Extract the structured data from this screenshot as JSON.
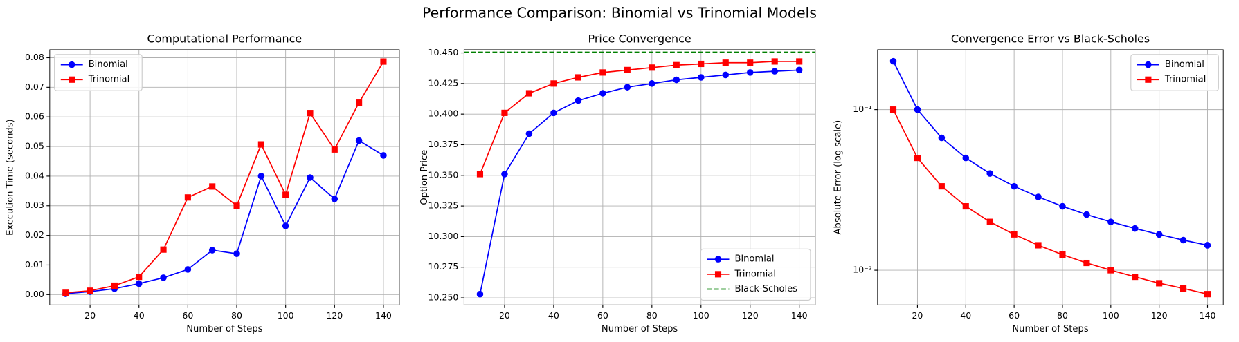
{
  "title": "Performance Comparison: Binomial vs Trinomial Models",
  "chart_data": [
    {
      "type": "line",
      "title": "Computational Performance",
      "xlabel": "Number of Steps",
      "ylabel": "Execution Time (seconds)",
      "x": [
        10,
        20,
        30,
        40,
        50,
        60,
        70,
        80,
        90,
        100,
        110,
        120,
        130,
        140
      ],
      "series": [
        {
          "name": "Binomial",
          "color": "#0000ff",
          "marker": "circle",
          "values": [
            0.0003,
            0.001,
            0.002,
            0.0037,
            0.0057,
            0.0085,
            0.015,
            0.0138,
            0.04,
            0.0232,
            0.0395,
            0.0323,
            0.052,
            0.047
          ]
        },
        {
          "name": "Trinomial",
          "color": "#ff0000",
          "marker": "square",
          "values": [
            0.0006,
            0.0013,
            0.003,
            0.006,
            0.0152,
            0.0328,
            0.0365,
            0.03,
            0.0507,
            0.0337,
            0.0613,
            0.049,
            0.0648,
            0.0787
          ]
        }
      ],
      "xlim": [
        3.5,
        146.5
      ],
      "xticks": [
        20,
        40,
        60,
        80,
        100,
        120,
        140
      ],
      "ylim": [
        -0.0035,
        0.0827
      ],
      "yticks": [
        {
          "value": 0,
          "label": "0.00"
        },
        {
          "value": 0.01,
          "label": "0.01"
        },
        {
          "value": 0.02,
          "label": "0.02"
        },
        {
          "value": 0.03,
          "label": "0.03"
        },
        {
          "value": 0.04,
          "label": "0.04"
        },
        {
          "value": 0.05,
          "label": "0.05"
        },
        {
          "value": 0.06,
          "label": "0.06"
        },
        {
          "value": 0.07,
          "label": "0.07"
        },
        {
          "value": 0.08,
          "label": "0.08"
        }
      ],
      "grid": true,
      "legend": "upper left"
    },
    {
      "type": "line",
      "title": "Price Convergence",
      "xlabel": "Number of Steps",
      "ylabel": "Option Price",
      "x": [
        10,
        20,
        30,
        40,
        50,
        60,
        70,
        80,
        90,
        100,
        110,
        120,
        130,
        140
      ],
      "series": [
        {
          "name": "Binomial",
          "color": "#0000ff",
          "marker": "circle",
          "values": [
            10.253,
            10.351,
            10.384,
            10.401,
            10.411,
            10.417,
            10.422,
            10.425,
            10.428,
            10.43,
            10.432,
            10.434,
            10.435,
            10.436
          ]
        },
        {
          "name": "Trinomial",
          "color": "#ff0000",
          "marker": "square",
          "values": [
            10.351,
            10.401,
            10.417,
            10.425,
            10.43,
            10.434,
            10.436,
            10.438,
            10.44,
            10.441,
            10.442,
            10.442,
            10.443,
            10.443
          ]
        }
      ],
      "reference_line": {
        "name": "Black-Scholes",
        "color": "#008000",
        "linestyle": "dashed",
        "value": 10.4506
      },
      "xlim": [
        3.5,
        146.5
      ],
      "xticks": [
        20,
        40,
        60,
        80,
        100,
        120,
        140
      ],
      "ylim": [
        10.2442,
        10.4526
      ],
      "yticks": [
        {
          "value": 10.25,
          "label": "10.250"
        },
        10.275,
        {
          "value": 10.3,
          "label": "10.300"
        },
        10.325,
        {
          "value": 10.35,
          "label": "10.350"
        },
        10.375,
        {
          "value": 10.4,
          "label": "10.400"
        },
        10.425,
        {
          "value": 10.45,
          "label": "10.450"
        }
      ],
      "grid": true,
      "legend": "lower right"
    },
    {
      "type": "line",
      "title": "Convergence Error vs Black-Scholes",
      "xlabel": "Number of Steps",
      "ylabel": "Absolute Error (log scale)",
      "x": [
        10,
        20,
        30,
        40,
        50,
        60,
        70,
        80,
        90,
        100,
        110,
        120,
        130,
        140
      ],
      "series": [
        {
          "name": "Binomial",
          "color": "#0000ff",
          "marker": "circle",
          "values": [
            0.2,
            0.1,
            0.0667,
            0.05,
            0.04,
            0.0333,
            0.0286,
            0.025,
            0.0222,
            0.02,
            0.0182,
            0.0167,
            0.0154,
            0.0143
          ]
        },
        {
          "name": "Trinomial",
          "color": "#ff0000",
          "marker": "square",
          "values": [
            0.1,
            0.05,
            0.0333,
            0.025,
            0.02,
            0.0167,
            0.0143,
            0.0125,
            0.0111,
            0.01,
            0.0091,
            0.0083,
            0.0077,
            0.0071
          ]
        }
      ],
      "xlim": [
        3.5,
        146.5
      ],
      "xticks": [
        20,
        40,
        60,
        80,
        100,
        120,
        140
      ],
      "ylim": [
        0.00608,
        0.236
      ],
      "yscale": "log",
      "yticks": [
        {
          "value": 0.01,
          "label": "10⁻²"
        },
        {
          "value": 0.1,
          "label": "10⁻¹"
        }
      ],
      "grid": true,
      "legend": "upper right"
    }
  ]
}
